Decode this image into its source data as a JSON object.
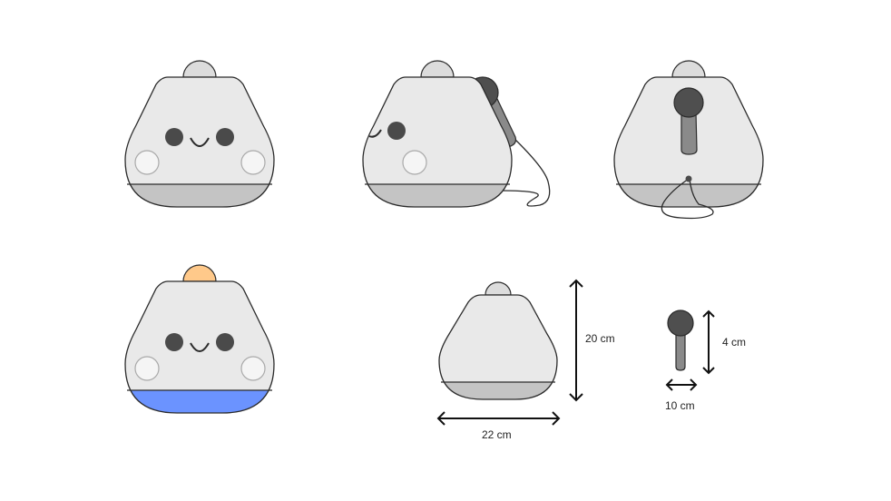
{
  "colors": {
    "body_fill": "#e9e9e9",
    "base_fill": "#c4c4c4",
    "outline": "#2b2b2b",
    "eye": "#4a4a4a",
    "cheek": "#f5f5f5",
    "top_knob": "#dcdcdc",
    "mic_head": "#4f4f4f",
    "mic_handle": "#8a8a8a",
    "highlight_knob": "#ffc98a",
    "highlight_base": "#6b93ff",
    "arrow": "#111111"
  },
  "icons": [
    "speaker-front-view",
    "speaker-side-view",
    "speaker-back-view",
    "speaker-highlighted-view",
    "speaker-dimension-view",
    "microphone"
  ],
  "dimensions": {
    "height_label": "20 cm",
    "width_label": "22 cm",
    "mic_height_label": "4 cm",
    "mic_width_label": "10 cm"
  }
}
